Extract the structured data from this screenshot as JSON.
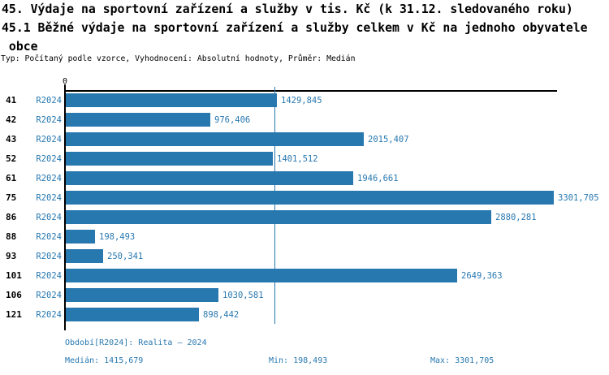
{
  "colors": {
    "bar": "#2878b0",
    "accent_text": "#2878b0",
    "axis": "#000000",
    "background": "#ffffff"
  },
  "title": {
    "line1": "45. Výdaje na sportovní zařízení a služby v tis. Kč (k 31.12. sledovaného roku)",
    "line2": "45.1 Běžné výdaje na sportovní zařízení a služby celkem v Kč na jednoho obyvatele",
    "line3": " obce",
    "meta": "Typ: Počítaný podle vzorce, Vyhodnocení: Absolutní hodnoty, Průměr: Medián"
  },
  "chart_data": {
    "type": "bar",
    "orientation": "horizontal",
    "origin_tick_label": "0",
    "categories": [
      "41",
      "42",
      "43",
      "52",
      "61",
      "75",
      "86",
      "88",
      "93",
      "101",
      "106",
      "121"
    ],
    "series": [
      {
        "name": "R2024",
        "values": [
          1429.845,
          976.406,
          2015.407,
          1401.512,
          1946.661,
          3301.705,
          2880.281,
          198.493,
          250.341,
          2649.363,
          1030.581,
          898.442
        ]
      }
    ],
    "value_labels": [
      "1429,845",
      "976,406",
      "2015,407",
      "1401,512",
      "1946,661",
      "3301,705",
      "2880,281",
      "198,493",
      "250,341",
      "2649,363",
      "1030,581",
      "898,442"
    ],
    "median": {
      "value": 1415.679,
      "label": "1415,679"
    },
    "min": {
      "value": 198.493,
      "label": "198,493"
    },
    "max": {
      "value": 3301.705,
      "label": "3301,705"
    },
    "xlim": [
      0,
      3330
    ],
    "grid": false,
    "legend": false,
    "bar_color": "#2878b0",
    "median_line_color": "#2878b0"
  },
  "footer": {
    "period_label": "Období[R2024]: Realita – 2024",
    "median_label": "Medián: 1415,679",
    "min_label": "Min: 198,493",
    "max_label": "Max: 3301,705"
  }
}
